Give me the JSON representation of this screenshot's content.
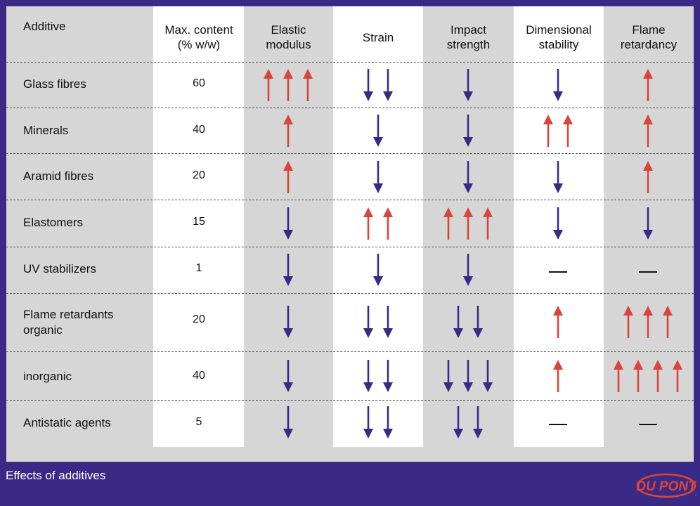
{
  "headers": {
    "additive": "Additive",
    "max_content": "Max. content\n(% w/w)",
    "elastic_modulus": "Elastic\nmodulus",
    "strain": "Strain",
    "impact_strength": "Impact\nstrength",
    "dimensional_stability": "Dimensional\nstability",
    "flame_retardancy": "Flame\nretardancy"
  },
  "rows": [
    {
      "label": "Glass fibres",
      "content": "60",
      "effects": [
        3,
        -2,
        -1,
        -1,
        1
      ]
    },
    {
      "label": "Minerals",
      "content": "40",
      "effects": [
        1,
        -1,
        -1,
        2,
        1
      ]
    },
    {
      "label": "Aramid fibres",
      "content": "20",
      "effects": [
        1,
        -1,
        -1,
        -1,
        1
      ]
    },
    {
      "label": "Elastomers",
      "content": "15",
      "effects": [
        -1,
        2,
        3,
        -1,
        -1
      ]
    },
    {
      "label": "UV stabilizers",
      "content": "1",
      "effects": [
        -1,
        -1,
        -1,
        0,
        0
      ]
    },
    {
      "label": "Flame retardants\n   organic",
      "content": "20",
      "effects": [
        -1,
        -2,
        -2,
        1,
        3
      ]
    },
    {
      "label": "    inorganic",
      "content": "40",
      "effects": [
        -1,
        -2,
        -3,
        1,
        4
      ]
    },
    {
      "label": "Antistatic agents",
      "content": "5",
      "effects": [
        -1,
        -2,
        -2,
        0,
        0
      ]
    }
  ],
  "legend": {
    "increase_icon": "arrow-up-icon",
    "decrease_icon": "arrow-down-icon",
    "no_effect_icon": "dash-icon"
  },
  "colors": {
    "up_arrow": "#d9453a",
    "down_arrow": "#3b2a85",
    "background": "#3b2a85",
    "panel": "#d6d6d6"
  },
  "footer": {
    "caption": "Effects of additives",
    "logo_text": "DU PONT"
  }
}
